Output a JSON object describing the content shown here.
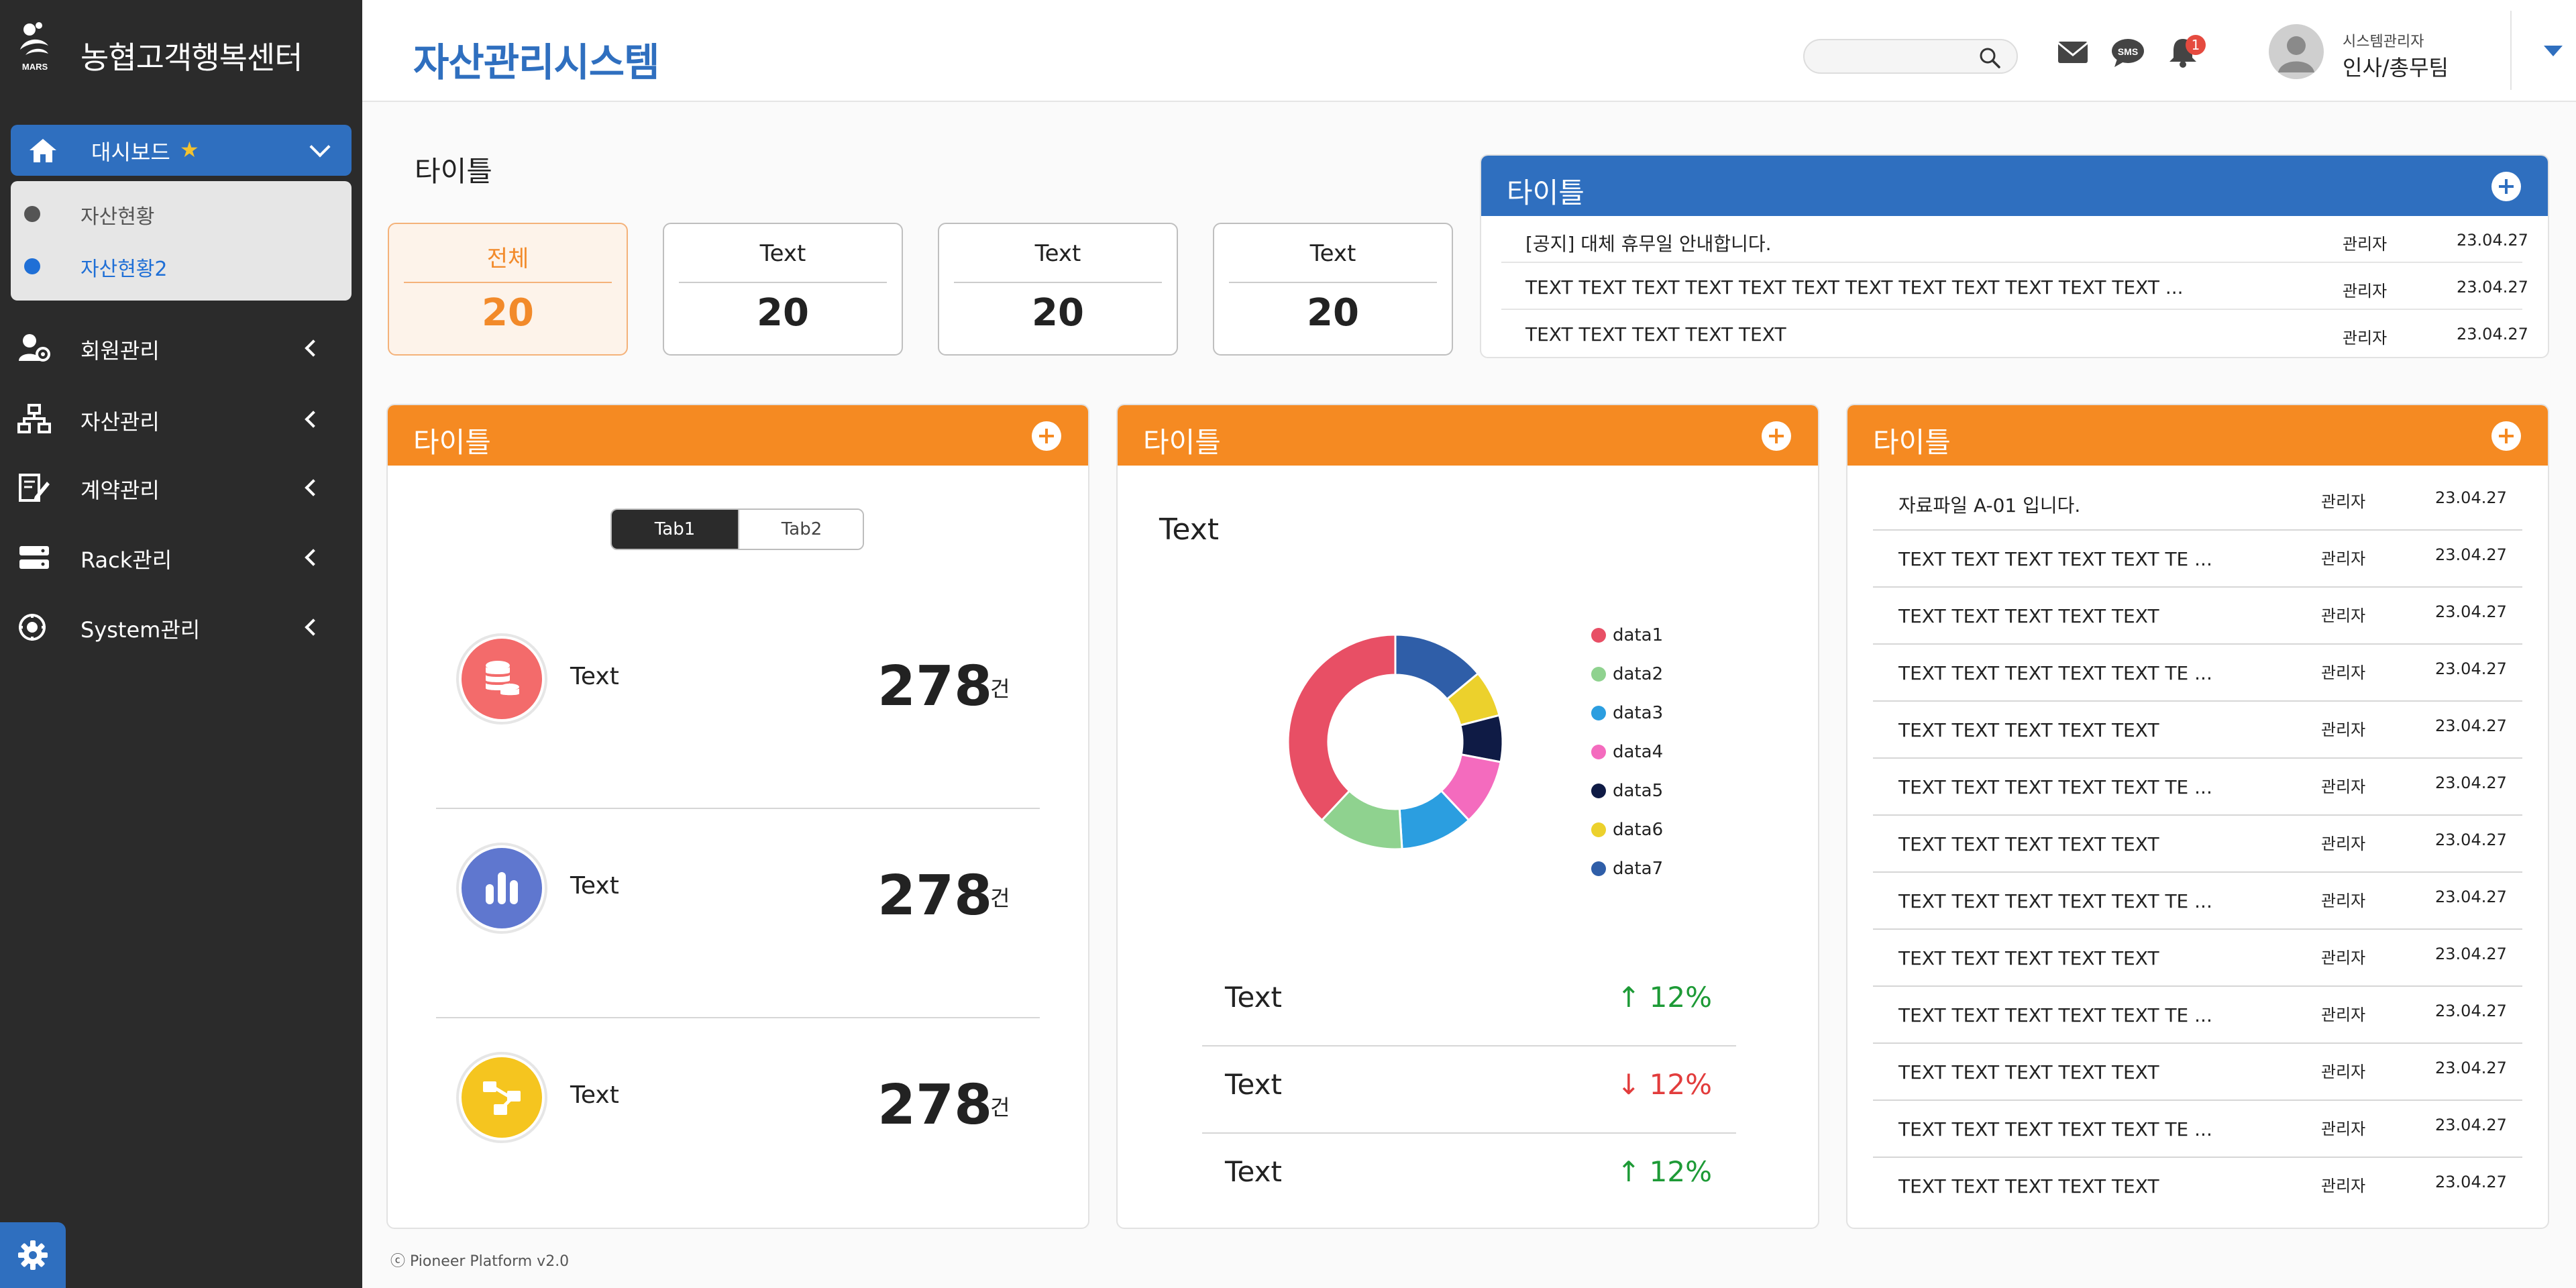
{
  "sidebar": {
    "brand": {
      "logo_text": "MARS",
      "name": "농협고객행복센터"
    },
    "active_menu": {
      "label": "대시보드",
      "icon": "home-icon",
      "starred": true
    },
    "submenu": [
      {
        "label": "자산현황",
        "active": false
      },
      {
        "label": "자산현황2",
        "active": true
      }
    ],
    "items": [
      {
        "label": "회원관리",
        "icon": "user-gear-icon"
      },
      {
        "label": "자산관리",
        "icon": "network-icon"
      },
      {
        "label": "계약관리",
        "icon": "contract-icon"
      },
      {
        "label": "Rack관리",
        "icon": "server-icon"
      },
      {
        "label": "System관리",
        "icon": "system-settings-icon"
      }
    ],
    "settings_icon": "gear-icon"
  },
  "header": {
    "title": "자산관리시스템",
    "search": {
      "value": "",
      "placeholder": ""
    },
    "icons": [
      "mail-icon",
      "sms-icon",
      "bell-icon"
    ],
    "notification_count": "1",
    "user": {
      "role": "시스템관리자",
      "name": "인사/총무팀"
    }
  },
  "main": {
    "section_title": "타이틀",
    "stats": [
      {
        "label": "전체",
        "value": "20",
        "active": true
      },
      {
        "label": "Text",
        "value": "20",
        "active": false
      },
      {
        "label": "Text",
        "value": "20",
        "active": false
      },
      {
        "label": "Text",
        "value": "20",
        "active": false
      }
    ],
    "notice_panel": {
      "title": "타이틀",
      "rows": [
        {
          "title": "[공지] 대체 휴무일 안내합니다.",
          "author": "관리자",
          "date": "23.04.27"
        },
        {
          "title": "TEXT TEXT TEXT TEXT TEXT TEXT TEXT TEXT TEXT TEXT TEXT TEXT ...",
          "author": "관리자",
          "date": "23.04.27"
        },
        {
          "title": "TEXT TEXT TEXT TEXT TEXT",
          "author": "관리자",
          "date": "23.04.27"
        }
      ]
    },
    "count_panel": {
      "title": "타이틀",
      "tabs": [
        "Tab1",
        "Tab2"
      ],
      "active_tab": "Tab1",
      "rows": [
        {
          "icon": "database-icon",
          "color": "#f36b6b",
          "label": "Text",
          "value": "278",
          "unit": "건"
        },
        {
          "icon": "bar-chart-icon",
          "color": "#5f77cf",
          "label": "Text",
          "value": "278",
          "unit": "건"
        },
        {
          "icon": "share-icon",
          "color": "#f5c51f",
          "label": "Text",
          "value": "278",
          "unit": "건"
        }
      ]
    },
    "chart_panel": {
      "title": "타이틀",
      "subtitle": "Text",
      "chart_data": {
        "type": "pie",
        "donut": true,
        "legend_position": "right",
        "categories": [
          "data1",
          "data2",
          "data3",
          "data4",
          "data5",
          "data6",
          "data7"
        ],
        "values": [
          38,
          13,
          11,
          10,
          7,
          7,
          14
        ],
        "colors": [
          "#e84f65",
          "#8fd28f",
          "#2b9ee0",
          "#f46bbe",
          "#0f1b45",
          "#ecd12c",
          "#2f5ea8"
        ]
      },
      "trends": [
        {
          "label": "Text",
          "value": "↑ 12%",
          "direction": "up"
        },
        {
          "label": "Text",
          "value": "↓ 12%",
          "direction": "down"
        },
        {
          "label": "Text",
          "value": "↑ 12%",
          "direction": "up"
        }
      ]
    },
    "file_panel": {
      "title": "타이틀",
      "rows": [
        {
          "title": "자료파일 A-01 입니다.",
          "author": "관리자",
          "date": "23.04.27"
        },
        {
          "title": "TEXT TEXT TEXT TEXT TEXT TE ...",
          "author": "관리자",
          "date": "23.04.27"
        },
        {
          "title": "TEXT TEXT TEXT TEXT TEXT",
          "author": "관리자",
          "date": "23.04.27"
        },
        {
          "title": "TEXT TEXT TEXT TEXT TEXT TE ...",
          "author": "관리자",
          "date": "23.04.27"
        },
        {
          "title": "TEXT TEXT TEXT TEXT TEXT",
          "author": "관리자",
          "date": "23.04.27"
        },
        {
          "title": "TEXT TEXT TEXT TEXT TEXT TE ...",
          "author": "관리자",
          "date": "23.04.27"
        },
        {
          "title": "TEXT TEXT TEXT TEXT TEXT",
          "author": "관리자",
          "date": "23.04.27"
        },
        {
          "title": "TEXT TEXT TEXT TEXT TEXT TE ...",
          "author": "관리자",
          "date": "23.04.27"
        },
        {
          "title": "TEXT TEXT TEXT TEXT TEXT",
          "author": "관리자",
          "date": "23.04.27"
        },
        {
          "title": "TEXT TEXT TEXT TEXT TEXT TE ...",
          "author": "관리자",
          "date": "23.04.27"
        },
        {
          "title": "TEXT TEXT TEXT TEXT TEXT",
          "author": "관리자",
          "date": "23.04.27"
        },
        {
          "title": "TEXT TEXT TEXT TEXT TEXT TE ...",
          "author": "관리자",
          "date": "23.04.27"
        },
        {
          "title": "TEXT TEXT TEXT TEXT TEXT",
          "author": "관리자",
          "date": "23.04.27"
        }
      ]
    }
  },
  "footer": {
    "text": "ⓒ Pioneer Platform v2.0"
  }
}
